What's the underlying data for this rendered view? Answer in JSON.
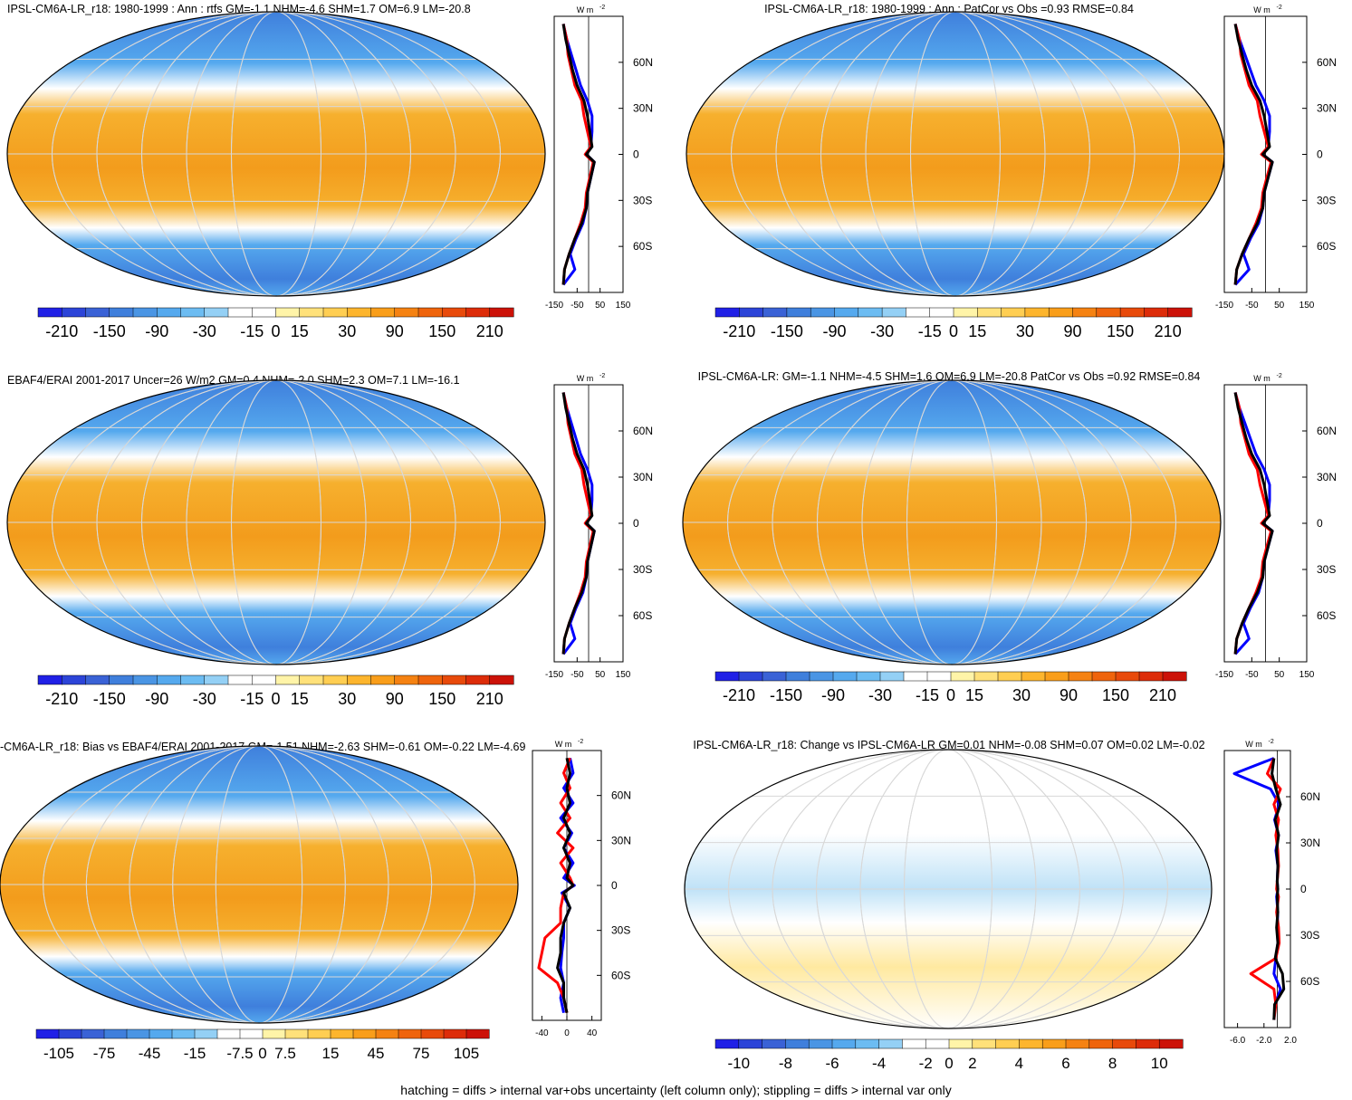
{
  "footnote": "hatching = diffs > internal var+obs uncertainty (left column only); stippling = diffs > internal var only",
  "colors": {
    "scale_std": [
      "#2020e6",
      "#2c44d8",
      "#3a62d6",
      "#3f7fdc",
      "#4a95e4",
      "#55a9ee",
      "#6cbcf2",
      "#94d0f5",
      "#ffffff",
      "#ffffff",
      "#fff4a8",
      "#ffe17a",
      "#ffce52",
      "#fdb52d",
      "#f99e1a",
      "#f58212",
      "#ef640c",
      "#e84a0b",
      "#dd2c09",
      "#cc1208"
    ],
    "line_blue": "#0000ff",
    "line_red": "#ff0000",
    "line_black": "#000000",
    "ocean_mid": "#f6b02e",
    "ocean_south": "#55a9ee",
    "map_grid": "#d8d8d8"
  },
  "chart_data": [
    {
      "type": "heatmap",
      "title": "IPSL-CM6A-LR_r18: 1980-1999 : Ann : rtfs GM=-1.1 NHM=-4.6 SHM=1.7 OM=6.9 LM=-20.8",
      "colorbar_labels": [
        "-210",
        "-150",
        "-90",
        "-30",
        "-15",
        "0",
        "15",
        "30",
        "90",
        "150",
        "210"
      ],
      "zonal_mean": {
        "unit_label": "W m",
        "unit_exp": "-2",
        "xticks": [
          "-150",
          "-50",
          "50",
          "150"
        ],
        "xlim": [
          -150,
          150
        ],
        "yticks": [
          "60N",
          "30N",
          "0",
          "30S",
          "60S"
        ],
        "lat": [
          85,
          75,
          65,
          55,
          45,
          35,
          25,
          15,
          5,
          0,
          -5,
          -15,
          -25,
          -35,
          -45,
          -55,
          -65,
          -75,
          -85
        ],
        "series": [
          {
            "values": [
              -110,
              -95,
              -75,
              -55,
              -35,
              -5,
              15,
              15,
              10,
              -10,
              25,
              10,
              -5,
              -10,
              -25,
              -55,
              -80,
              -60,
              -110
            ]
          },
          {
            "values": [
              -110,
              -95,
              -90,
              -75,
              -60,
              -30,
              -20,
              -5,
              10,
              -15,
              20,
              5,
              -10,
              -15,
              -35,
              -60,
              -85,
              -105,
              -110
            ]
          },
          {
            "values": [
              -110,
              -100,
              -85,
              -70,
              -50,
              -20,
              -5,
              5,
              15,
              -10,
              25,
              10,
              -5,
              -10,
              -30,
              -60,
              -85,
              -105,
              -110
            ]
          }
        ]
      }
    },
    {
      "type": "heatmap",
      "title": "IPSL-CM6A-LR_r18: 1980-1999 : Ann : PatCor vs Obs =0.93 RMSE=0.84",
      "colorbar_labels": [
        "-210",
        "-150",
        "-90",
        "-30",
        "-15",
        "0",
        "15",
        "30",
        "90",
        "150",
        "210"
      ],
      "zonal_mean": {
        "unit_label": "W m",
        "unit_exp": "-2",
        "xticks": [
          "-150",
          "-50",
          "50",
          "150"
        ],
        "xlim": [
          -150,
          150
        ],
        "yticks": [
          "60N",
          "30N",
          "0",
          "30S",
          "60S"
        ],
        "lat": [
          85,
          75,
          65,
          55,
          45,
          35,
          25,
          15,
          5,
          0,
          -5,
          -15,
          -25,
          -35,
          -45,
          -55,
          -65,
          -75,
          -85
        ],
        "series": [
          {
            "values": [
              -110,
              -95,
              -75,
              -55,
              -35,
              -5,
              15,
              15,
              10,
              -10,
              25,
              10,
              -5,
              -10,
              -25,
              -55,
              -80,
              -60,
              -110
            ]
          },
          {
            "values": [
              -110,
              -95,
              -90,
              -75,
              -60,
              -30,
              -20,
              -5,
              10,
              -15,
              20,
              5,
              -10,
              -15,
              -35,
              -60,
              -85,
              -105,
              -110
            ]
          },
          {
            "values": [
              -110,
              -100,
              -85,
              -70,
              -50,
              -20,
              -5,
              5,
              15,
              -10,
              25,
              10,
              -5,
              -10,
              -30,
              -60,
              -85,
              -105,
              -110
            ]
          }
        ]
      }
    },
    {
      "type": "heatmap",
      "title": "EBAF4/ERAI 2001-2017 Uncer=26 W/m2 GM=0.4 NHM=-2.0 SHM=2.3 OM=7.1 LM=-16.1",
      "colorbar_labels": [
        "-210",
        "-150",
        "-90",
        "-30",
        "-15",
        "0",
        "15",
        "30",
        "90",
        "150",
        "210"
      ],
      "zonal_mean": {
        "unit_label": "W m",
        "unit_exp": "-2",
        "xticks": [
          "-150",
          "-50",
          "50",
          "150"
        ],
        "xlim": [
          -150,
          150
        ],
        "yticks": [
          "60N",
          "30N",
          "0",
          "30S",
          "60S"
        ],
        "lat": [
          85,
          75,
          65,
          55,
          45,
          35,
          25,
          15,
          5,
          0,
          -5,
          -15,
          -25,
          -35,
          -45,
          -55,
          -65,
          -75,
          -85
        ],
        "series": [
          {
            "values": [
              -110,
              -95,
              -75,
              -55,
              -35,
              -5,
              15,
              15,
              10,
              -10,
              25,
              10,
              -5,
              -10,
              -25,
              -55,
              -80,
              -60,
              -110
            ]
          },
          {
            "values": [
              -110,
              -95,
              -90,
              -75,
              -60,
              -30,
              -20,
              -5,
              10,
              -15,
              20,
              5,
              -10,
              -15,
              -35,
              -60,
              -85,
              -105,
              -110
            ]
          },
          {
            "values": [
              -110,
              -100,
              -85,
              -70,
              -50,
              -20,
              -5,
              5,
              15,
              -10,
              25,
              10,
              -5,
              -10,
              -30,
              -60,
              -85,
              -105,
              -110
            ]
          }
        ]
      }
    },
    {
      "type": "heatmap",
      "title": "IPSL-CM6A-LR: GM=-1.1 NHM=-4.5 SHM=1.6 OM=6.9 LM=-20.8 PatCor vs Obs =0.92 RMSE=0.84",
      "colorbar_labels": [
        "-210",
        "-150",
        "-90",
        "-30",
        "-15",
        "0",
        "15",
        "30",
        "90",
        "150",
        "210"
      ],
      "zonal_mean": {
        "unit_label": "W m",
        "unit_exp": "-2",
        "xticks": [
          "-150",
          "-50",
          "50",
          "150"
        ],
        "xlim": [
          -150,
          150
        ],
        "yticks": [
          "60N",
          "30N",
          "0",
          "30S",
          "60S"
        ],
        "lat": [
          85,
          75,
          65,
          55,
          45,
          35,
          25,
          15,
          5,
          0,
          -5,
          -15,
          -25,
          -35,
          -45,
          -55,
          -65,
          -75,
          -85
        ],
        "series": [
          {
            "values": [
              -110,
              -95,
              -75,
              -55,
              -35,
              -5,
              15,
              15,
              10,
              -10,
              25,
              10,
              -5,
              -10,
              -25,
              -55,
              -80,
              -60,
              -110
            ]
          },
          {
            "values": [
              -110,
              -95,
              -90,
              -75,
              -60,
              -30,
              -20,
              -5,
              10,
              -15,
              20,
              5,
              -10,
              -15,
              -35,
              -60,
              -85,
              -105,
              -110
            ]
          },
          {
            "values": [
              -110,
              -100,
              -85,
              -70,
              -50,
              -20,
              -5,
              5,
              15,
              -10,
              25,
              10,
              -5,
              -10,
              -30,
              -60,
              -85,
              -105,
              -110
            ]
          }
        ]
      }
    },
    {
      "type": "heatmap",
      "title": "-CM6A-LR_r18: Bias vs EBAF4/ERAI 2001-2017 GM=-1.51 NHM=-2.63 SHM=-0.61 OM=-0.22 LM=-4.69",
      "colorbar_labels": [
        "-105",
        "-75",
        "-45",
        "-15",
        "-7.5",
        "0",
        "7.5",
        "15",
        "45",
        "75",
        "105"
      ],
      "zonal_mean": {
        "unit_label": "W m",
        "unit_exp": "-2",
        "xticks": [
          "-40",
          "0",
          "40"
        ],
        "xlim": [
          -55,
          55
        ],
        "yticks": [
          "60N",
          "30N",
          "0",
          "30S",
          "60S"
        ],
        "lat": [
          85,
          75,
          65,
          55,
          45,
          35,
          25,
          15,
          5,
          0,
          -5,
          -15,
          -25,
          -35,
          -45,
          -55,
          -65,
          -75,
          -85
        ],
        "series": [
          {
            "values": [
              5,
              10,
              -5,
              10,
              -10,
              8,
              -5,
              10,
              -5,
              12,
              -8,
              5,
              -5,
              -5,
              -8,
              -10,
              -5,
              -10,
              -5
            ]
          },
          {
            "values": [
              5,
              -5,
              5,
              -10,
              5,
              -15,
              10,
              -10,
              5,
              10,
              -5,
              -10,
              -10,
              -35,
              -40,
              -45,
              -15,
              -5,
              0
            ]
          },
          {
            "values": [
              0,
              5,
              0,
              5,
              -5,
              5,
              -5,
              5,
              0,
              10,
              -5,
              5,
              -5,
              -10,
              -10,
              -15,
              -5,
              -5,
              0
            ]
          }
        ]
      }
    },
    {
      "type": "heatmap",
      "title": "IPSL-CM6A-LR_r18: Change vs IPSL-CM6A-LR GM=0.01 NHM=-0.08 SHM=0.07 OM=0.02 LM=-0.02",
      "colorbar_labels": [
        "-10",
        "-8",
        "-6",
        "-4",
        "-2",
        "0",
        "2",
        "4",
        "6",
        "8",
        "10"
      ],
      "zonal_mean": {
        "unit_label": "W m",
        "unit_exp": "-2",
        "xticks": [
          "-6.0",
          "-2.0",
          "2.0"
        ],
        "xlim": [
          -8,
          2
        ],
        "yticks": [
          "60N",
          "30N",
          "0",
          "30S",
          "60S"
        ],
        "lat": [
          85,
          75,
          65,
          55,
          45,
          35,
          25,
          15,
          5,
          0,
          -5,
          -15,
          -25,
          -35,
          -45,
          -55,
          -65,
          -75,
          -85
        ],
        "series": [
          {
            "values": [
              -0.5,
              -6.5,
              -1.0,
              0.3,
              -0.4,
              0.2,
              -0.2,
              0.1,
              0.0,
              0.1,
              -0.1,
              0.1,
              0.0,
              0.1,
              -0.2,
              -0.5,
              0.5,
              -0.3,
              -0.5
            ]
          },
          {
            "values": [
              -0.5,
              -1.5,
              0.5,
              -0.5,
              0.2,
              -0.2,
              0.1,
              0.2,
              0.0,
              -0.1,
              0.2,
              -0.1,
              0.2,
              0.3,
              -0.2,
              -4.0,
              -0.5,
              -0.2,
              -0.5
            ]
          },
          {
            "values": [
              -0.5,
              -0.8,
              -0.2,
              0.5,
              -0.3,
              0.2,
              -0.1,
              0.1,
              0.0,
              0.1,
              0.0,
              0.1,
              -0.1,
              0.1,
              -0.3,
              0.8,
              1.0,
              -0.4,
              -0.5
            ]
          }
        ]
      }
    }
  ]
}
